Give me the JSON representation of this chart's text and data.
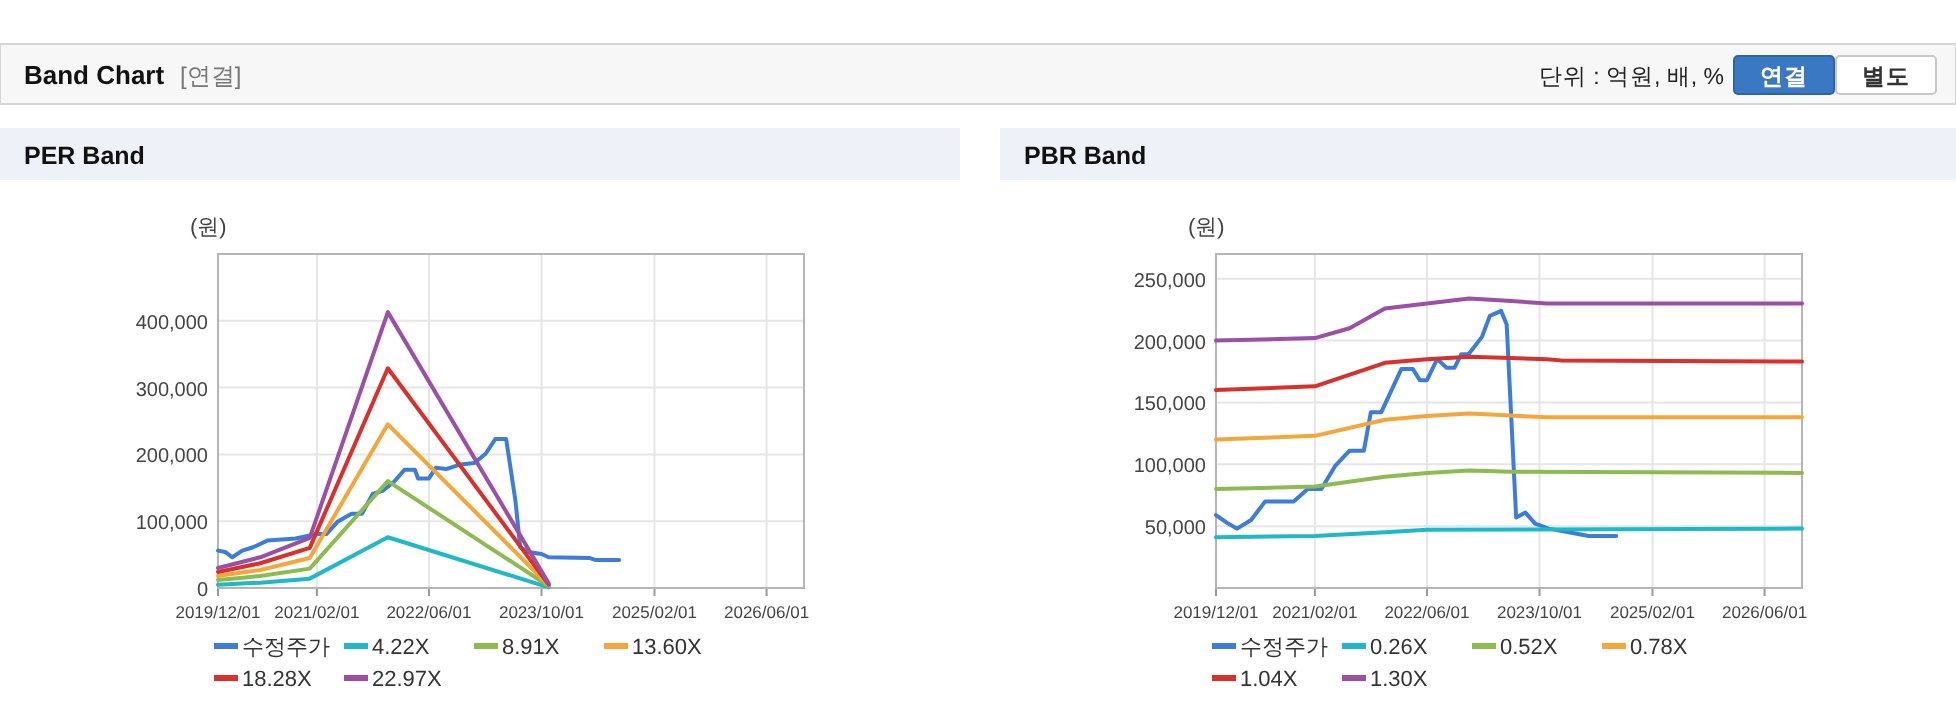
{
  "chart_data": [
    {
      "type": "other",
      "title": "Band Chart",
      "annotations": [
        "[연결]",
        "단위 : 억원, 배, %",
        "연결",
        "별도"
      ]
    },
    {
      "type": "line",
      "title": "PER Band",
      "ylabel": "(원)",
      "grid": true,
      "legend": "bottom",
      "marker": "none",
      "line_style": "solid",
      "xlim": [
        "2019-12-01",
        "2026-11-10"
      ],
      "ylim": [
        0,
        500000
      ],
      "xticks": [
        {
          "value": "2019-12-01",
          "label": "2019/12/01"
        },
        {
          "value": "2021-02-01",
          "label": "2021/02/01"
        },
        {
          "value": "2022-06-01",
          "label": "2022/06/01"
        },
        {
          "value": "2023-10-01",
          "label": "2023/10/01"
        },
        {
          "value": "2025-02-01",
          "label": "2025/02/01"
        },
        {
          "value": "2026-06-01",
          "label": "2026/06/01"
        }
      ],
      "yticks": [
        0,
        {
          "value": 100000,
          "label": "100,000"
        },
        {
          "value": 200000,
          "label": "200,000"
        },
        {
          "value": 300000,
          "label": "300,000"
        },
        {
          "value": 400000,
          "label": "400,000"
        }
      ],
      "series": [
        {
          "name": "수정주가",
          "color": "#3b7dd8",
          "x": [
            "2019-12-01",
            "2020-01-01",
            "2020-02-01",
            "2020-03-15",
            "2020-05-01",
            "2020-07-01",
            "2020-11-01",
            "2021-02-01",
            "2021-03-15",
            "2021-05-01",
            "2021-07-01",
            "2021-08-15",
            "2021-10-01",
            "2021-11-15",
            "2022-01-01",
            "2022-02-15",
            "2022-04-01",
            "2022-04-15",
            "2022-06-01",
            "2022-07-01",
            "2022-08-15",
            "2022-10-15",
            "2022-12-15",
            "2023-02-01",
            "2023-03-15",
            "2023-05-01",
            "2023-06-10",
            "2023-07-01",
            "2023-08-05",
            "2023-10-01",
            "2023-11-01",
            "2024-04-25",
            "2024-05-20",
            "2024-09-01"
          ],
          "values": [
            56000,
            54000,
            46000,
            56000,
            61000,
            71000,
            74000,
            81000,
            81000,
            99000,
            111000,
            111000,
            141000,
            146000,
            159000,
            177000,
            177000,
            164000,
            164000,
            180000,
            178000,
            185000,
            187000,
            201000,
            223000,
            223000,
            131000,
            61000,
            54000,
            51000,
            46000,
            45000,
            42000,
            42000
          ]
        },
        {
          "name": "4.22X",
          "color": "#1fb8c9",
          "x": [
            "2019-12-01",
            "2020-06-01",
            "2021-01-01",
            "2021-12-05",
            "2023-11-01"
          ],
          "values": [
            5000,
            8000,
            14000,
            76000,
            1000
          ]
        },
        {
          "name": "8.91X",
          "color": "#8cbc4f",
          "x": [
            "2019-12-01",
            "2020-06-01",
            "2021-01-01",
            "2021-12-05",
            "2023-11-01"
          ],
          "values": [
            12000,
            18000,
            29000,
            160000,
            3000
          ]
        },
        {
          "name": "13.60X",
          "color": "#f5a63b",
          "x": [
            "2019-12-01",
            "2020-06-01",
            "2021-01-01",
            "2021-12-05",
            "2023-11-01"
          ],
          "values": [
            18000,
            27000,
            45000,
            245000,
            4000
          ]
        },
        {
          "name": "18.28X",
          "color": "#d9302c",
          "x": [
            "2019-12-01",
            "2020-06-01",
            "2021-01-01",
            "2021-12-05",
            "2023-11-01"
          ],
          "values": [
            24000,
            37000,
            60000,
            329000,
            5000
          ]
        },
        {
          "name": "22.97X",
          "color": "#9b4fa5",
          "x": [
            "2019-12-01",
            "2020-06-01",
            "2021-01-01",
            "2021-12-05",
            "2023-11-01"
          ],
          "values": [
            30000,
            46000,
            75000,
            413000,
            7000
          ]
        }
      ]
    },
    {
      "type": "line",
      "title": "PBR Band",
      "ylabel": "(원)",
      "grid": true,
      "legend": "bottom",
      "marker": "none",
      "line_style": "solid",
      "xlim": [
        "2019-12-01",
        "2026-11-10"
      ],
      "ylim": [
        0,
        270000
      ],
      "xticks": [
        {
          "value": "2019-12-01",
          "label": "2019/12/01"
        },
        {
          "value": "2021-02-01",
          "label": "2021/02/01"
        },
        {
          "value": "2022-06-01",
          "label": "2022/06/01"
        },
        {
          "value": "2023-10-01",
          "label": "2023/10/01"
        },
        {
          "value": "2025-02-01",
          "label": "2025/02/01"
        },
        {
          "value": "2026-06-01",
          "label": "2026/06/01"
        }
      ],
      "yticks": [
        {
          "value": 50000,
          "label": "50,000"
        },
        {
          "value": 100000,
          "label": "100,000"
        },
        {
          "value": 150000,
          "label": "150,000"
        },
        {
          "value": 200000,
          "label": "200,000"
        },
        {
          "value": 250000,
          "label": "250,000"
        }
      ],
      "series": [
        {
          "name": "수정주가",
          "color": "#3b7dd8",
          "x": [
            "2019-12-01",
            "2020-01-15",
            "2020-03-01",
            "2020-05-01",
            "2020-07-01",
            "2020-11-01",
            "2021-01-01",
            "2021-03-01",
            "2021-05-01",
            "2021-07-01",
            "2021-09-01",
            "2021-10-01",
            "2021-11-15",
            "2022-02-10",
            "2022-04-01",
            "2022-05-01",
            "2022-06-01",
            "2022-07-15",
            "2022-08-25",
            "2022-09-28",
            "2022-10-28",
            "2022-11-28",
            "2023-01-25",
            "2023-02-28",
            "2023-04-18",
            "2023-05-12",
            "2023-06-22",
            "2023-08-01",
            "2023-09-12",
            "2023-11-10",
            "2024-02-05",
            "2024-05-01",
            "2024-08-28"
          ],
          "values": [
            59000,
            53000,
            48000,
            55000,
            70000,
            70000,
            80000,
            80000,
            99000,
            111000,
            111000,
            142000,
            142000,
            177000,
            177000,
            168000,
            168000,
            185000,
            178000,
            178000,
            189000,
            189000,
            203000,
            220000,
            224000,
            213000,
            57000,
            61000,
            52000,
            48000,
            45000,
            42000,
            42000
          ]
        },
        {
          "name": "0.26X",
          "color": "#1fb8c9",
          "x": [
            "2019-12-01",
            "2021-02-01",
            "2021-12-01",
            "2022-06-01",
            "2026-11-10"
          ],
          "values": [
            41000,
            42000,
            45000,
            47000,
            48000
          ]
        },
        {
          "name": "0.52X",
          "color": "#8cbc4f",
          "x": [
            "2019-12-01",
            "2021-02-01",
            "2021-12-01",
            "2022-06-01",
            "2022-12-01",
            "2023-06-01",
            "2026-11-10"
          ],
          "values": [
            80000,
            82000,
            90000,
            93000,
            95000,
            94000,
            93000
          ]
        },
        {
          "name": "0.78X",
          "color": "#f5a63b",
          "x": [
            "2019-12-01",
            "2021-02-01",
            "2021-12-01",
            "2022-06-01",
            "2022-12-01",
            "2023-11-01",
            "2026-11-10"
          ],
          "values": [
            120000,
            123000,
            136000,
            139000,
            141000,
            138000,
            138000
          ]
        },
        {
          "name": "1.04X",
          "color": "#d9302c",
          "x": [
            "2019-12-01",
            "2021-02-01",
            "2021-12-01",
            "2022-06-01",
            "2022-12-01",
            "2023-11-01",
            "2024-01-01",
            "2026-11-10"
          ],
          "values": [
            160000,
            163000,
            182000,
            185000,
            187000,
            185000,
            184000,
            183000
          ]
        },
        {
          "name": "1.30X",
          "color": "#9b4fa5",
          "x": [
            "2019-12-01",
            "2021-02-01",
            "2021-07-01",
            "2021-12-01",
            "2022-06-01",
            "2022-12-01",
            "2023-06-01",
            "2023-11-01",
            "2026-11-10"
          ],
          "values": [
            200000,
            202000,
            210000,
            226000,
            230000,
            234000,
            232000,
            230000,
            230000
          ]
        }
      ]
    }
  ]
}
